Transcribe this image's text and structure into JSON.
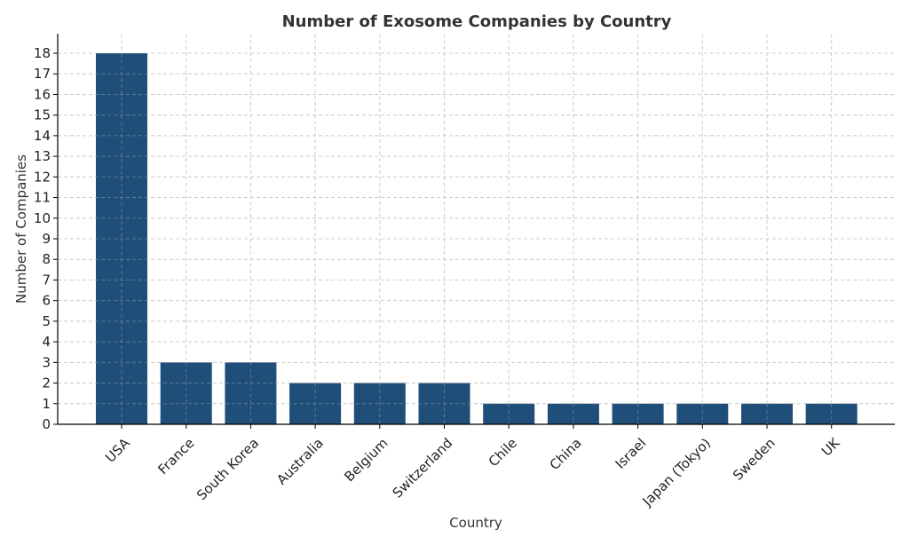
{
  "chart_data": {
    "type": "bar",
    "title": "Number of Exosome Companies by Country",
    "xlabel": "Country",
    "ylabel": "Number of Companies",
    "categories": [
      "USA",
      "France",
      "South Korea",
      "Australia",
      "Belgium",
      "Switzerland",
      "Chile",
      "China",
      "Israel",
      "Japan (Tokyo)",
      "Sweden",
      "UK"
    ],
    "values": [
      18,
      3,
      3,
      2,
      2,
      2,
      1,
      1,
      1,
      1,
      1,
      1
    ],
    "ylim": [
      0,
      18
    ],
    "yticks": [
      0,
      1,
      2,
      3,
      4,
      5,
      6,
      7,
      8,
      9,
      10,
      11,
      12,
      13,
      14,
      15,
      16,
      17,
      18
    ],
    "grid": true,
    "legend": "none",
    "colors": {
      "bar": "#1f4e79",
      "grid": "#cccccc",
      "text": "#333333"
    }
  }
}
